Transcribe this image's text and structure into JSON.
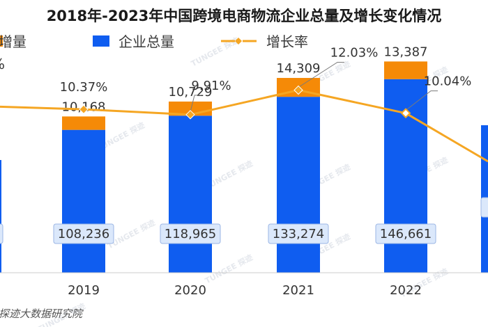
{
  "colors": {
    "total": "#0f5df0",
    "increment": "#f58a07",
    "rate": "#f5a623",
    "label_box_fill": "#dbe8fb",
    "label_box_stroke": "#9bb6e4"
  },
  "watermark_text": "TUNGEE 探迹",
  "source": "探迹大数据研究院",
  "chart_data": {
    "type": "bar",
    "title": "2018年-2023年中国跨境电商物流企业总量及增长变化情况",
    "legend": [
      {
        "key": "increment",
        "label": "增量",
        "marker": "square"
      },
      {
        "key": "total",
        "label": "企业总量",
        "marker": "square"
      },
      {
        "key": "rate",
        "label": "增长率",
        "marker": "line-diamond"
      }
    ],
    "legend_placement": "top",
    "categories": [
      "2019",
      "2020",
      "2021",
      "2022"
    ],
    "series": [
      {
        "name": "企业总量",
        "key": "total",
        "stack": "a",
        "values": [
          108236,
          118965,
          133274,
          146661
        ]
      },
      {
        "name": "增量",
        "key": "increment",
        "stack": "a",
        "values": [
          10168,
          10729,
          14309,
          13387
        ]
      },
      {
        "name": "增长率",
        "key": "rate",
        "type": "line",
        "axis": "right",
        "values": [
          10.37,
          9.91,
          12.03,
          10.04
        ]
      }
    ],
    "value_labels": {
      "total": [
        "108,236",
        "118,965",
        "133,274",
        "146,661"
      ],
      "increment": [
        "10,168",
        "10,729",
        "14,309",
        "13,387"
      ],
      "rate": [
        "10.37%",
        "9.91%",
        "12.03%",
        "10.04%"
      ]
    },
    "ylim": [
      0,
      175000
    ],
    "rate_ylim": [
      0,
      15
    ],
    "grid": false
  }
}
